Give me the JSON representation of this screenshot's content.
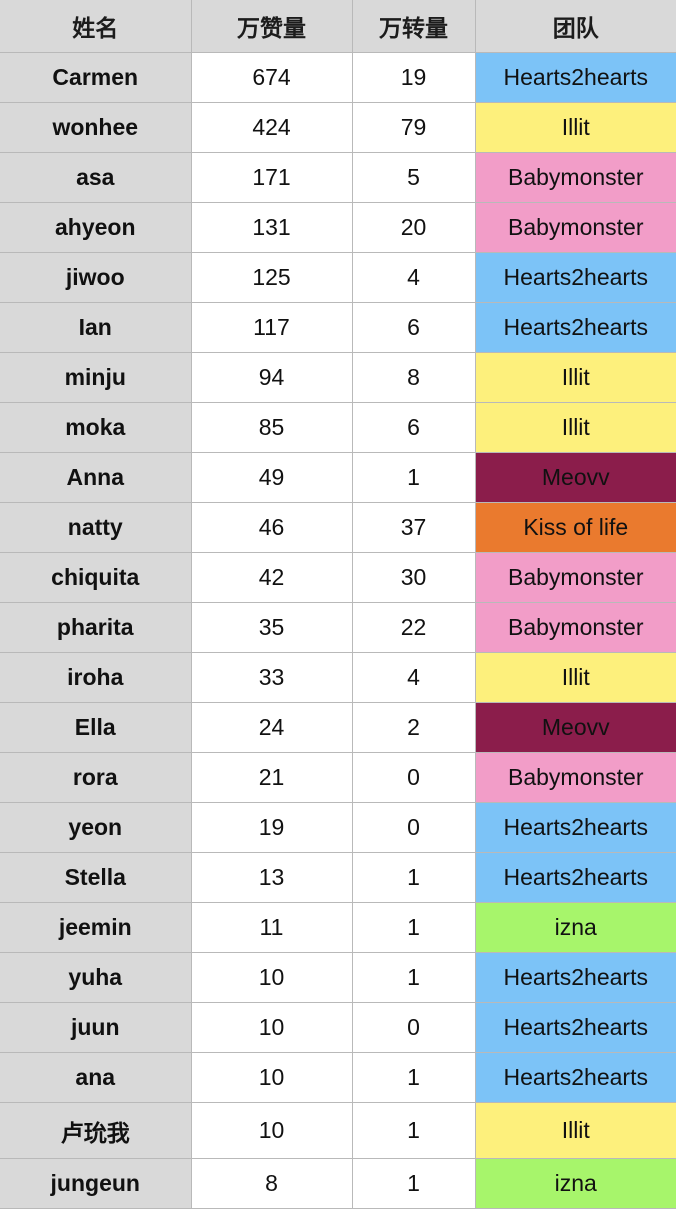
{
  "headers": {
    "name": "姓名",
    "likes": "万赞量",
    "reposts": "万转量",
    "team": "团队"
  },
  "team_colors": {
    "Hearts2hearts": "#7cc3f7",
    "Illit": "#fdf07c",
    "Babymonster": "#f29dc8",
    "Meovv": "#8b1d4b",
    "Kiss of life": "#ea7a2e",
    "izna": "#a7f56b"
  },
  "rows": [
    {
      "name": "Carmen",
      "likes": "674",
      "reposts": "19",
      "team": "Hearts2hearts"
    },
    {
      "name": "wonhee",
      "likes": "424",
      "reposts": "79",
      "team": "Illit"
    },
    {
      "name": "asa",
      "likes": "171",
      "reposts": "5",
      "team": "Babymonster"
    },
    {
      "name": "ahyeon",
      "likes": "131",
      "reposts": "20",
      "team": "Babymonster"
    },
    {
      "name": "jiwoo",
      "likes": "125",
      "reposts": "4",
      "team": "Hearts2hearts"
    },
    {
      "name": "Ian",
      "likes": "117",
      "reposts": "6",
      "team": "Hearts2hearts"
    },
    {
      "name": "minju",
      "likes": "94",
      "reposts": "8",
      "team": "Illit"
    },
    {
      "name": "moka",
      "likes": "85",
      "reposts": "6",
      "team": "Illit"
    },
    {
      "name": "Anna",
      "likes": "49",
      "reposts": "1",
      "team": "Meovv"
    },
    {
      "name": "natty",
      "likes": "46",
      "reposts": "37",
      "team": "Kiss of life"
    },
    {
      "name": "chiquita",
      "likes": "42",
      "reposts": "30",
      "team": "Babymonster"
    },
    {
      "name": "pharita",
      "likes": "35",
      "reposts": "22",
      "team": "Babymonster"
    },
    {
      "name": "iroha",
      "likes": "33",
      "reposts": "4",
      "team": "Illit"
    },
    {
      "name": "Ella",
      "likes": "24",
      "reposts": "2",
      "team": "Meovv"
    },
    {
      "name": "rora",
      "likes": "21",
      "reposts": "0",
      "team": "Babymonster"
    },
    {
      "name": "yeon",
      "likes": "19",
      "reposts": "0",
      "team": "Hearts2hearts"
    },
    {
      "name": "Stella",
      "likes": "13",
      "reposts": "1",
      "team": "Hearts2hearts"
    },
    {
      "name": "jeemin",
      "likes": "11",
      "reposts": "1",
      "team": "izna"
    },
    {
      "name": "yuha",
      "likes": "10",
      "reposts": "1",
      "team": "Hearts2hearts"
    },
    {
      "name": "juun",
      "likes": "10",
      "reposts": "0",
      "team": "Hearts2hearts"
    },
    {
      "name": "ana",
      "likes": "10",
      "reposts": "1",
      "team": "Hearts2hearts"
    },
    {
      "name": "卢玧我",
      "likes": "10",
      "reposts": "1",
      "team": "Illit"
    },
    {
      "name": "jungeun",
      "likes": "8",
      "reposts": "1",
      "team": "izna"
    }
  ]
}
